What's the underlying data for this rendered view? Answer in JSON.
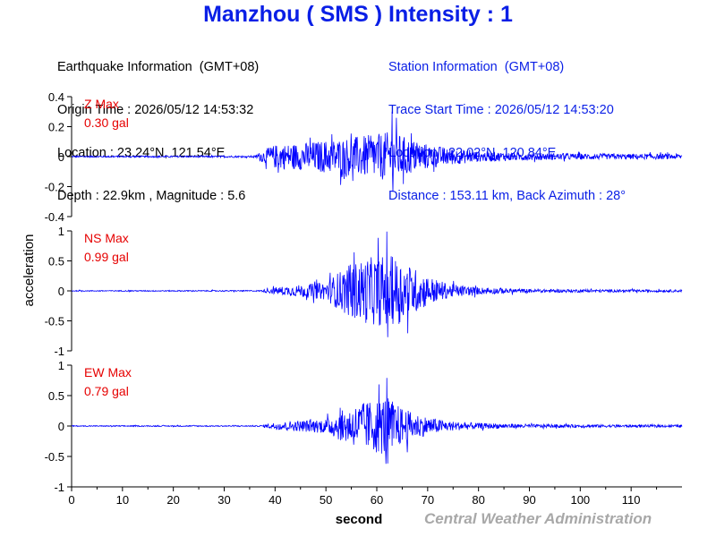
{
  "header": {
    "title": "Manzhou ( SMS ) Intensity : 1"
  },
  "earthquake_info": {
    "heading": "Earthquake Information  (GMT+08)",
    "origin_time": "Origin Time : 2026/05/12 14:53:32",
    "location": "Location : 23.24°N, 121.54°E",
    "depth_magnitude": "Depth : 22.9km , Magnitude : 5.6"
  },
  "station_info": {
    "heading": "Station Information  (GMT+08)",
    "trace_start": "Trace Start Time : 2026/05/12 14:53:20",
    "location": "Location : 22.02°N, 120.84°E",
    "distance": "Distance : 153.11 km, Back Azimuth : 28°"
  },
  "credit": "Central Weather Administration",
  "colors": {
    "title": "#0a1fe6",
    "trace": "#0000ff",
    "max_label": "#e60000",
    "credit": "#a8a8a8"
  },
  "chart_data": [
    {
      "type": "line",
      "component": "Z",
      "max_label": "Z Max",
      "max_value": "0.30 gal",
      "peak": 0.3,
      "ylim": [
        -0.4,
        0.4
      ],
      "yticks": [
        0.4,
        0.2,
        0,
        -0.2,
        -0.4
      ],
      "ytick_labels": [
        "0.4",
        "0.2",
        "0",
        "-0.2",
        "-0.4"
      ],
      "xlim": [
        0,
        120
      ],
      "envelope": {
        "x": [
          0,
          36,
          37,
          40,
          45,
          50,
          55,
          60,
          63,
          65,
          68,
          72,
          76,
          80,
          90,
          100,
          110,
          120
        ],
        "amp": [
          0.005,
          0.006,
          0.03,
          0.08,
          0.09,
          0.11,
          0.13,
          0.15,
          0.17,
          0.14,
          0.1,
          0.07,
          0.05,
          0.035,
          0.025,
          0.02,
          0.018,
          0.018
        ]
      }
    },
    {
      "type": "line",
      "component": "NS",
      "max_label": "NS Max",
      "max_value": "0.99 gal",
      "peak": 0.99,
      "ylim": [
        -1,
        1
      ],
      "yticks": [
        1,
        0.5,
        0,
        -0.5,
        -1
      ],
      "ytick_labels": [
        "1",
        "0.5",
        "0",
        "-0.5",
        "-1"
      ],
      "xlim": [
        0,
        120
      ],
      "envelope": {
        "x": [
          0,
          37,
          40,
          45,
          50,
          53,
          55,
          58,
          62,
          64,
          67,
          70,
          74,
          80,
          90,
          100,
          110,
          120
        ],
        "amp": [
          0.008,
          0.01,
          0.06,
          0.1,
          0.15,
          0.35,
          0.45,
          0.55,
          0.6,
          0.55,
          0.4,
          0.25,
          0.12,
          0.06,
          0.03,
          0.025,
          0.02,
          0.02
        ]
      }
    },
    {
      "type": "line",
      "component": "EW",
      "max_label": "EW Max",
      "max_value": "0.79 gal",
      "peak": 0.79,
      "ylim": [
        -1,
        1
      ],
      "yticks": [
        1,
        0.5,
        0,
        -0.5,
        -1
      ],
      "ytick_labels": [
        "1",
        "0.5",
        "0",
        "-0.5",
        "-1"
      ],
      "xlim": [
        0,
        120
      ],
      "envelope": {
        "x": [
          0,
          37,
          40,
          45,
          50,
          53,
          56,
          60,
          62,
          64,
          67,
          70,
          74,
          80,
          90,
          100,
          110,
          120
        ],
        "amp": [
          0.008,
          0.01,
          0.06,
          0.09,
          0.12,
          0.25,
          0.35,
          0.45,
          0.5,
          0.35,
          0.22,
          0.15,
          0.08,
          0.05,
          0.03,
          0.025,
          0.02,
          0.02
        ]
      }
    }
  ],
  "x_axis": {
    "label": "second",
    "ticks": [
      0,
      10,
      20,
      30,
      40,
      50,
      60,
      70,
      80,
      90,
      100,
      110
    ],
    "tick_labels": [
      "0",
      "10",
      "20",
      "30",
      "40",
      "50",
      "60",
      "70",
      "80",
      "90",
      "100",
      "110"
    ]
  },
  "y_axis": {
    "label": "acceleration"
  }
}
